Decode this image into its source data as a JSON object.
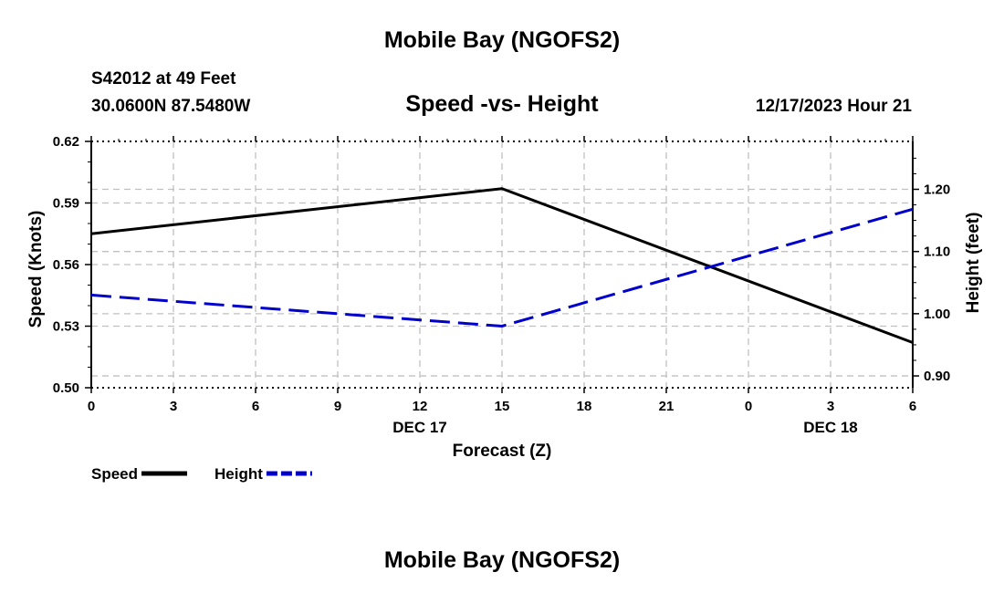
{
  "header": {
    "site_title": "Mobile Bay (NGOFS2)",
    "station": "S42012 at 49 Feet",
    "coords": "30.0600N  87.5480W",
    "chart_title": "Speed -vs- Height",
    "datetime": "12/17/2023 Hour 21"
  },
  "footer": {
    "site_title": "Mobile Bay (NGOFS2)"
  },
  "chart_data": {
    "type": "line",
    "title": "Speed -vs- Height",
    "xlabel": "Forecast (Z)",
    "ylabel": "Speed (Knots)",
    "y2label": "Height (feet)",
    "x_hours": [
      0,
      15,
      30
    ],
    "x_tick_hours": [
      0,
      3,
      6,
      9,
      12,
      15,
      18,
      21,
      24,
      27,
      30
    ],
    "x_tick_labels": [
      "0",
      "3",
      "6",
      "9",
      "12",
      "15",
      "18",
      "21",
      "0",
      "3",
      "6"
    ],
    "date_labels": [
      {
        "hour": 12,
        "label": "DEC 17"
      },
      {
        "hour": 27,
        "label": "DEC 18"
      }
    ],
    "xlim": [
      0,
      30
    ],
    "ylim": [
      0.5,
      0.62
    ],
    "y_ticks": [
      0.5,
      0.53,
      0.56,
      0.59,
      0.62
    ],
    "y_tick_labels": [
      "0.50",
      "0.53",
      "0.56",
      "0.59",
      "0.62"
    ],
    "y2lim": [
      0.881,
      1.277
    ],
    "y2_ticks": [
      0.9,
      1.0,
      1.1,
      1.2
    ],
    "y2_tick_labels": [
      "0.90",
      "1.00",
      "1.10",
      "1.20"
    ],
    "grid": true,
    "series": [
      {
        "name": "Speed",
        "axis": "left",
        "color": "#000000",
        "dash": "solid",
        "values": [
          0.575,
          0.597,
          0.522
        ]
      },
      {
        "name": "Height",
        "axis": "right",
        "color": "#0000cc",
        "dash": "dashed",
        "values": [
          1.03,
          0.98,
          1.168
        ]
      }
    ],
    "legend": [
      {
        "label": "Speed",
        "color": "#000000",
        "dash": "solid"
      },
      {
        "label": "Height",
        "color": "#0000cc",
        "dash": "dashed"
      }
    ],
    "legend_position": "bottom-left"
  }
}
